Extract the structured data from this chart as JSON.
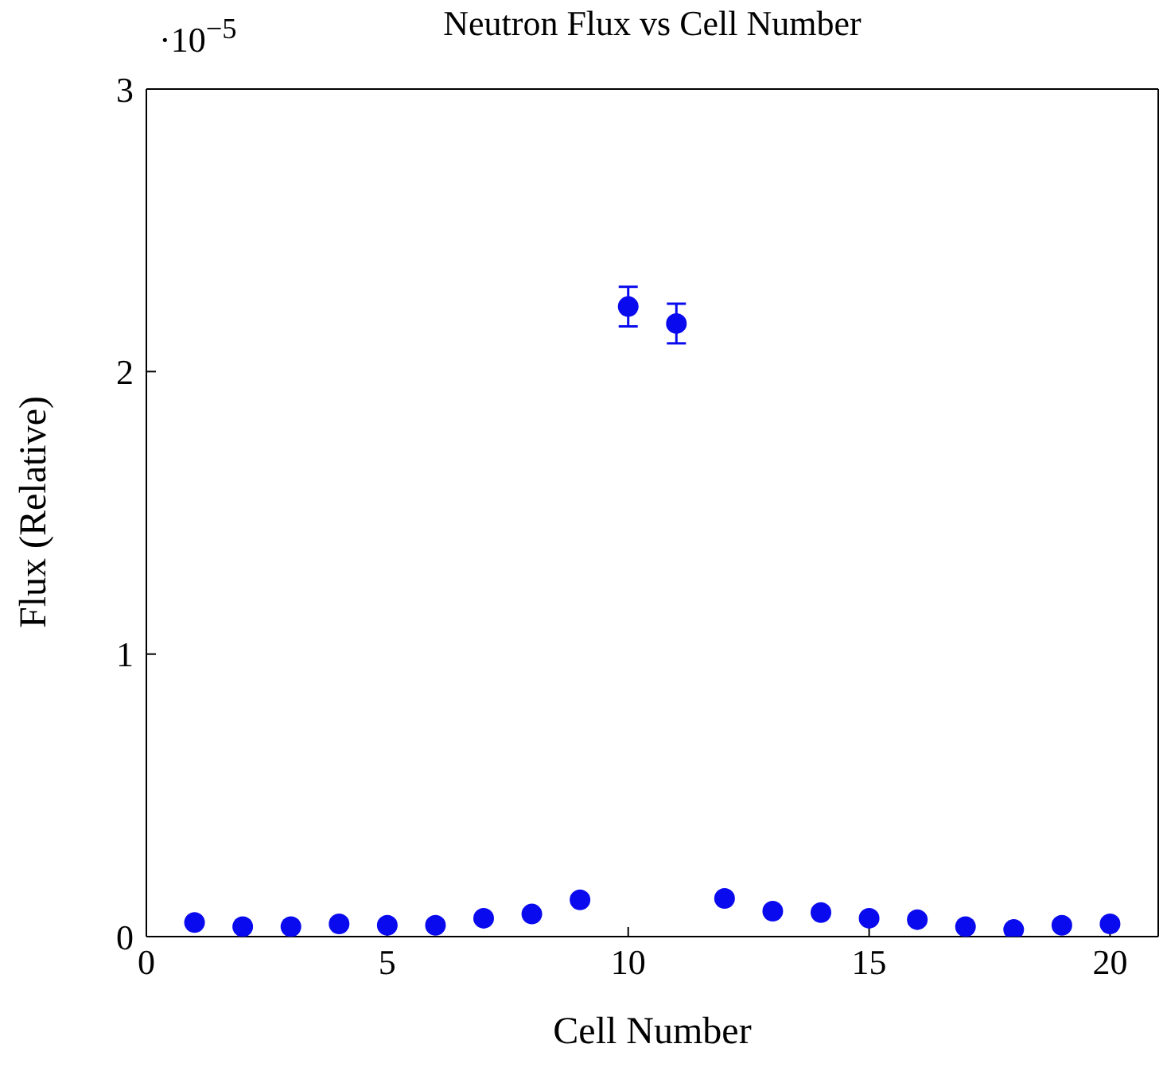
{
  "chart_data": {
    "type": "scatter",
    "title": "Neutron Flux vs Cell Number",
    "xlabel": "Cell Number",
    "ylabel": "Flux (Relative)",
    "annotations": [
      "·10$^{−5}$"
    ],
    "x": [
      1,
      2,
      3,
      4,
      5,
      6,
      7,
      8,
      9,
      10,
      11,
      12,
      13,
      14,
      15,
      16,
      17,
      18,
      19,
      20
    ],
    "series": [
      {
        "color": "#0a0aee",
        "values": [
          0.05,
          0.035,
          0.035,
          0.045,
          0.04,
          0.04,
          0.065,
          0.08,
          0.13,
          2.23,
          2.17,
          0.135,
          0.09,
          0.085,
          0.065,
          0.06,
          0.035,
          0.025,
          0.04,
          0.045
        ],
        "errors": [
          null,
          null,
          null,
          null,
          null,
          null,
          null,
          null,
          null,
          0.07,
          0.07,
          null,
          null,
          null,
          null,
          null,
          null,
          null,
          null,
          null
        ]
      }
    ],
    "xlim": [
      0,
      21
    ],
    "xticks": [
      0,
      5,
      10,
      15,
      20
    ],
    "ylim": [
      0,
      3
    ],
    "yticks": [
      0,
      1,
      2,
      3
    ],
    "marker": "circle"
  }
}
